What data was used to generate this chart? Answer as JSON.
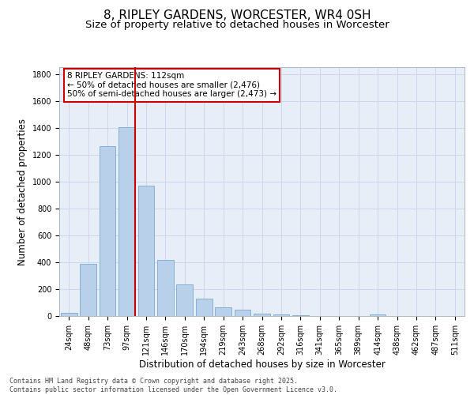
{
  "title_line1": "8, RIPLEY GARDENS, WORCESTER, WR4 0SH",
  "title_line2": "Size of property relative to detached houses in Worcester",
  "xlabel": "Distribution of detached houses by size in Worcester",
  "ylabel": "Number of detached properties",
  "categories": [
    "24sqm",
    "48sqm",
    "73sqm",
    "97sqm",
    "121sqm",
    "146sqm",
    "170sqm",
    "194sqm",
    "219sqm",
    "243sqm",
    "268sqm",
    "292sqm",
    "316sqm",
    "341sqm",
    "365sqm",
    "389sqm",
    "414sqm",
    "438sqm",
    "462sqm",
    "487sqm",
    "511sqm"
  ],
  "values": [
    25,
    390,
    1265,
    1405,
    970,
    415,
    235,
    130,
    65,
    45,
    15,
    10,
    5,
    2,
    0,
    0,
    10,
    0,
    0,
    0,
    0
  ],
  "bar_color": "#b8d0ea",
  "bar_edgecolor": "#6a9fc8",
  "annotation_text": "8 RIPLEY GARDENS: 112sqm\n← 50% of detached houses are smaller (2,476)\n50% of semi-detached houses are larger (2,473) →",
  "annotation_box_color": "#ffffff",
  "annotation_box_edgecolor": "#cc0000",
  "redline_color": "#cc0000",
  "ylim": [
    0,
    1850
  ],
  "yticks": [
    0,
    200,
    400,
    600,
    800,
    1000,
    1200,
    1400,
    1600,
    1800
  ],
  "grid_color": "#ccd8ea",
  "background_color": "#e8eef8",
  "footer_line1": "Contains HM Land Registry data © Crown copyright and database right 2025.",
  "footer_line2": "Contains public sector information licensed under the Open Government Licence v3.0.",
  "title_fontsize": 11,
  "subtitle_fontsize": 9.5,
  "axis_label_fontsize": 8.5,
  "tick_fontsize": 7,
  "annotation_fontsize": 7.5
}
